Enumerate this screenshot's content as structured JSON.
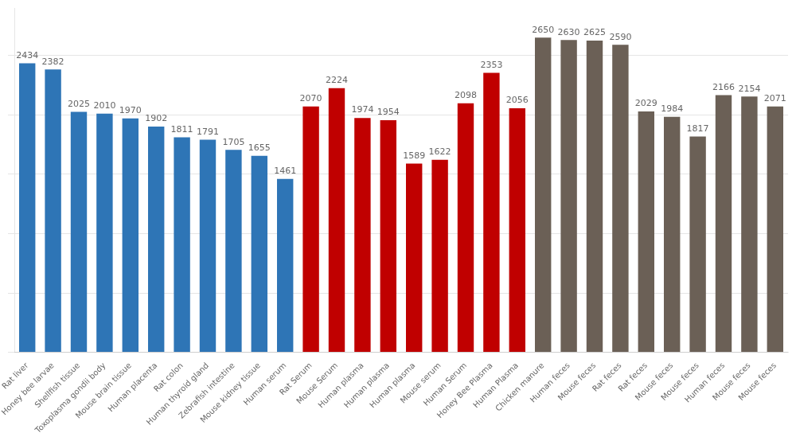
{
  "chart_data": {
    "type": "bar",
    "categories": [
      "Rat liver",
      "Honey bee larvae",
      "Shellfish tissue",
      "Toxoplasma gondii body",
      "Mouse brain tissue",
      "Human placenta",
      "Rat colon",
      "Human thyroid gland",
      "Zebrafish intestine",
      "Mouse kidney tissue",
      "Human serum",
      "Rat Serum",
      "Mouse Serum",
      "Human plasma",
      "Human plasma",
      "Human plasma",
      "Mouse serum",
      "Human Serum",
      "Honey Bee Plasma",
      "Human Plasma",
      "Chicken manure",
      "Human feces",
      "Mouse feces",
      "Rat feces",
      "Rat feces",
      "Mouse feces",
      "Mouse feces",
      "Human feces",
      "Mouse feces",
      "Mouse feces"
    ],
    "values": [
      2434,
      2382,
      2025,
      2010,
      1970,
      1902,
      1811,
      1791,
      1705,
      1655,
      1461,
      2070,
      2224,
      1974,
      1954,
      1589,
      1622,
      2098,
      2353,
      2056,
      2650,
      2630,
      2625,
      2590,
      2029,
      1984,
      1817,
      2166,
      2154,
      2071
    ],
    "colors": [
      "#2e75b6",
      "#2e75b6",
      "#2e75b6",
      "#2e75b6",
      "#2e75b6",
      "#2e75b6",
      "#2e75b6",
      "#2e75b6",
      "#2e75b6",
      "#2e75b6",
      "#2e75b6",
      "#c00000",
      "#c00000",
      "#c00000",
      "#c00000",
      "#c00000",
      "#c00000",
      "#c00000",
      "#c00000",
      "#c00000",
      "#6b6056",
      "#6b6056",
      "#6b6056",
      "#6b6056",
      "#6b6056",
      "#6b6056",
      "#6b6056",
      "#6b6056",
      "#6b6056",
      "#6b6056"
    ],
    "ylim": [
      0,
      2900
    ],
    "yticks": [
      0,
      500,
      1000,
      1500,
      2000,
      2500
    ],
    "grid": true,
    "data_labels": true,
    "tick_labels": "x"
  }
}
